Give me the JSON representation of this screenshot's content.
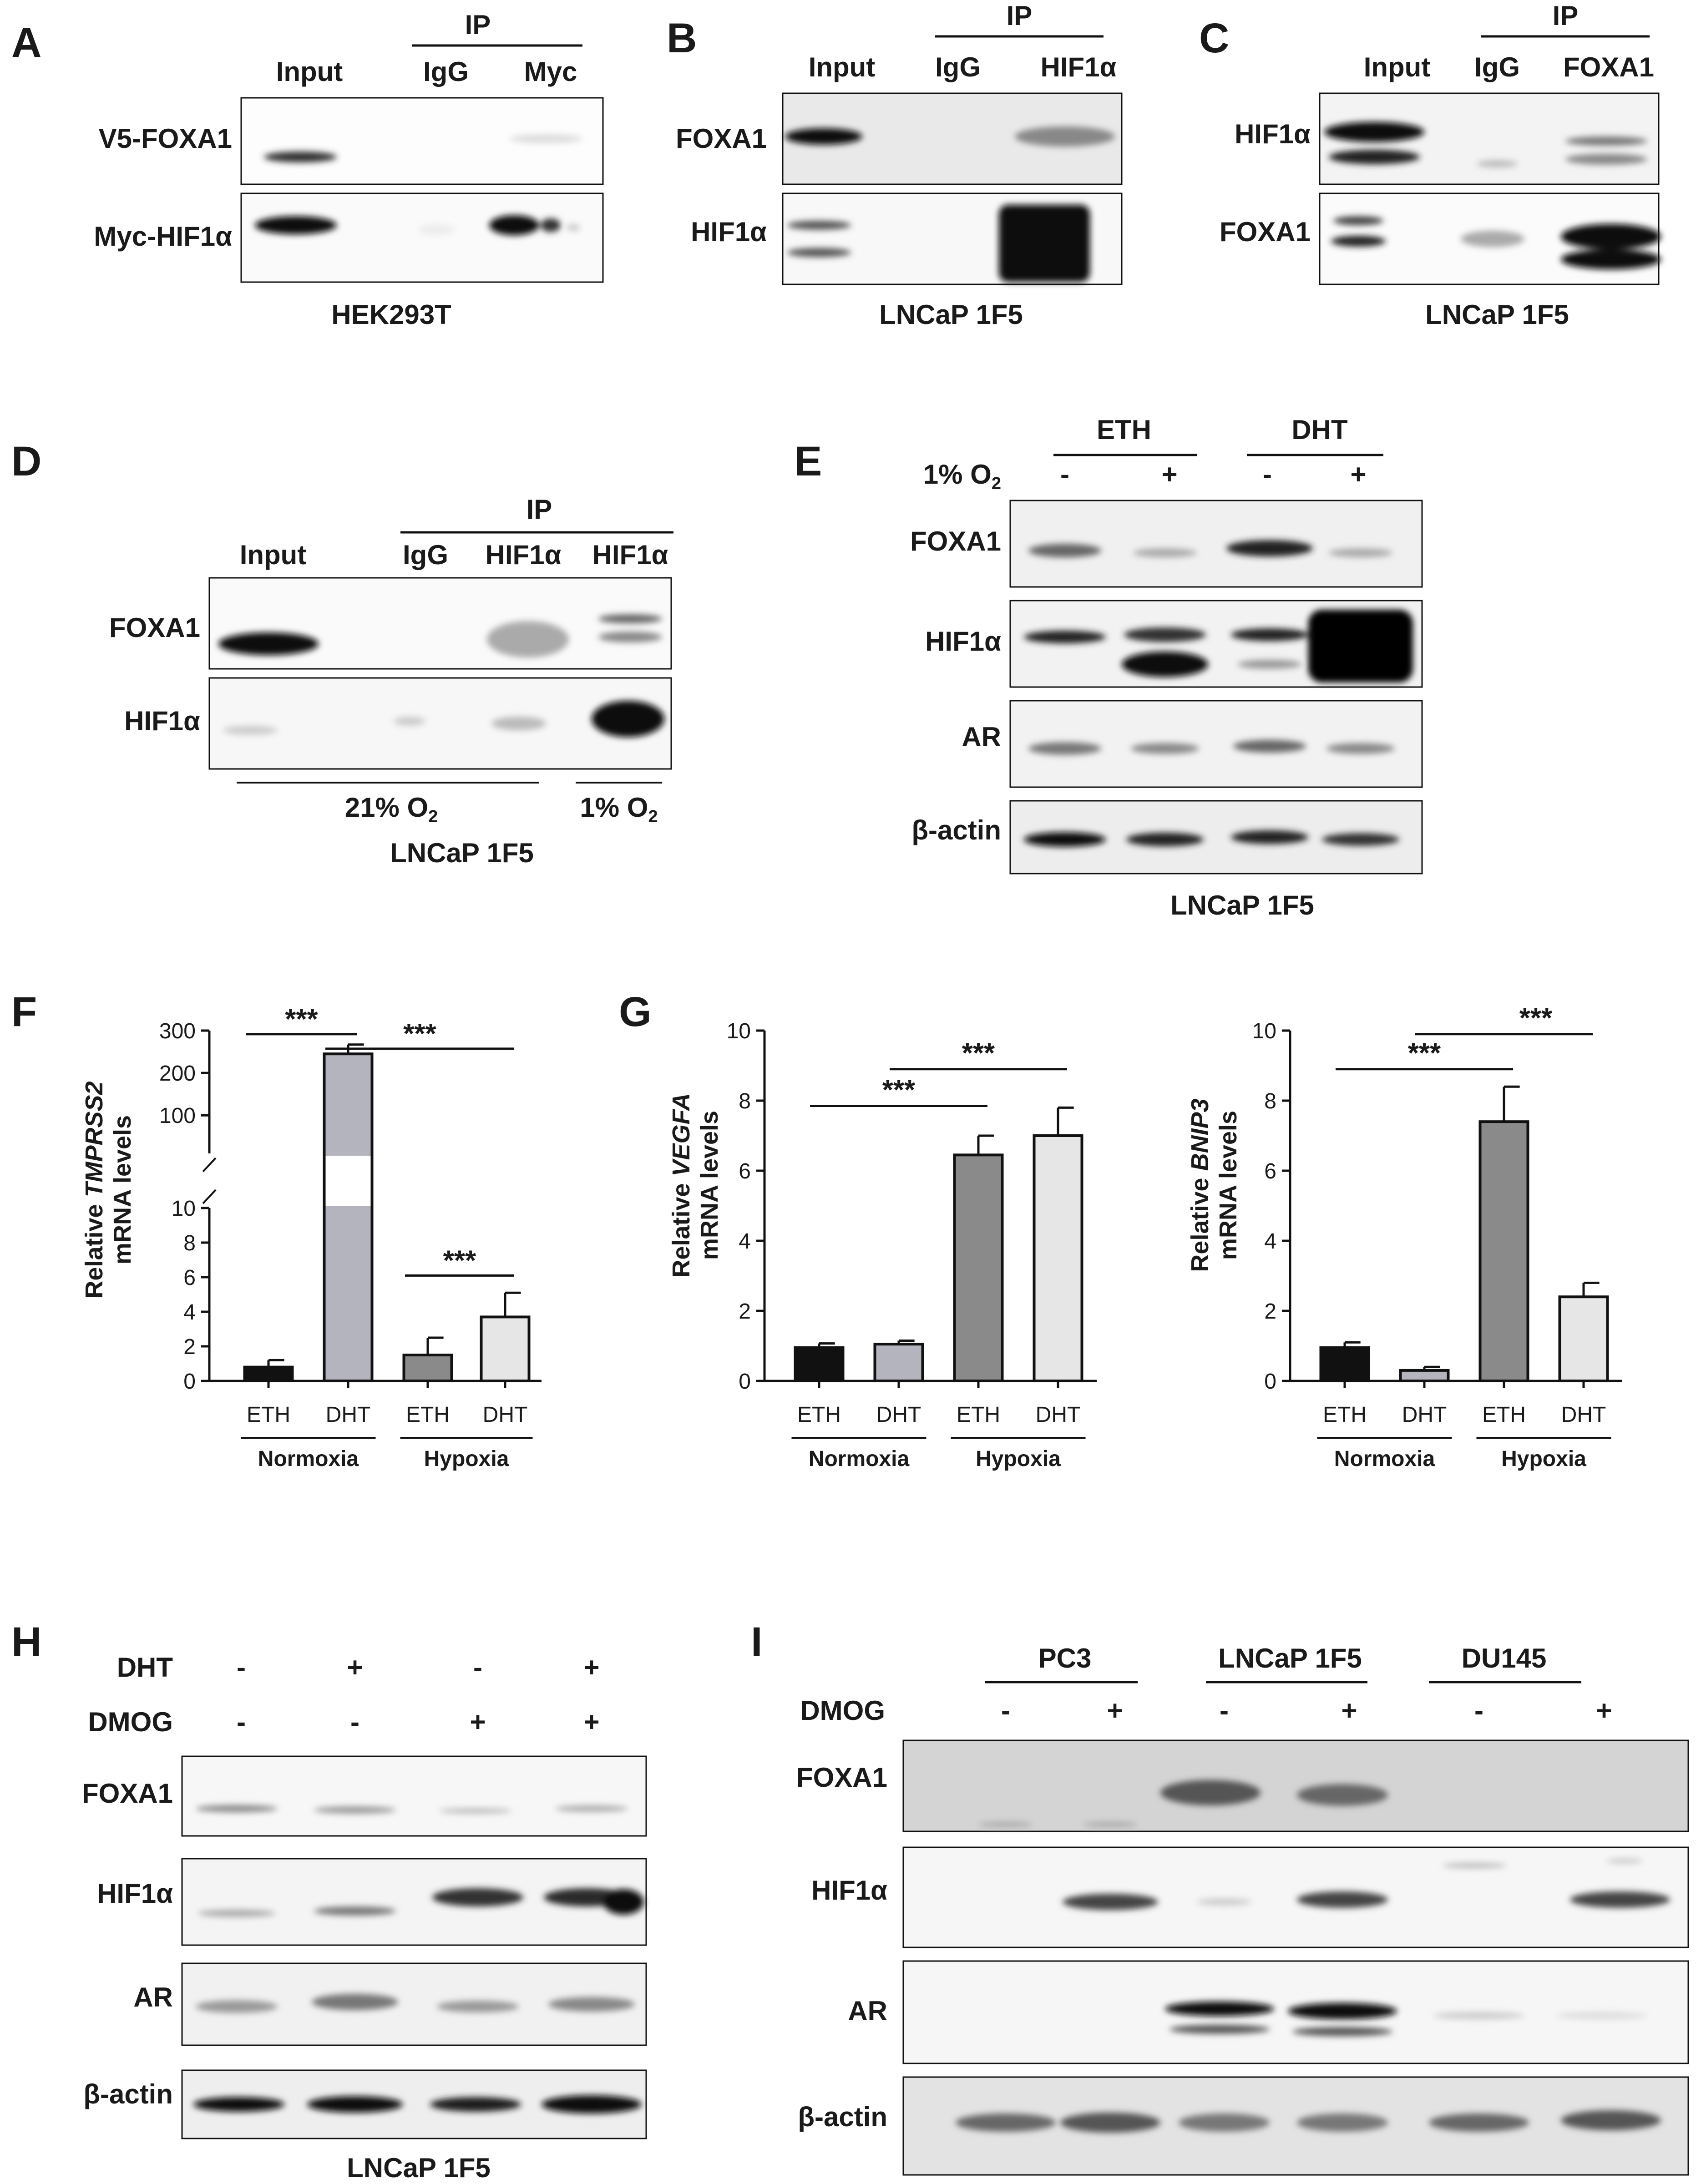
{
  "colors": {
    "eth_normoxia": "#111111",
    "dht_normoxia": "#b4b4be",
    "eth_hypoxia": "#8a8a8a",
    "dht_hypoxia": "#e6e6e6"
  },
  "panelA": {
    "letter": "A",
    "ip": "IP",
    "lanes": [
      "Input",
      "IgG",
      "Myc"
    ],
    "rows": [
      "V5-FOXA1",
      "Myc-HIF1α"
    ],
    "cell": "HEK293T"
  },
  "panelB": {
    "letter": "B",
    "ip": "IP",
    "lanes": [
      "Input",
      "IgG",
      "HIF1α"
    ],
    "rows": [
      "FOXA1",
      "HIF1α"
    ],
    "cell": "LNCaP 1F5"
  },
  "panelC": {
    "letter": "C",
    "ip": "IP",
    "lanes": [
      "Input",
      "IgG",
      "FOXA1"
    ],
    "rows": [
      "HIF1α",
      "FOXA1"
    ],
    "cell": "LNCaP 1F5"
  },
  "panelD": {
    "letter": "D",
    "ip": "IP",
    "lanes": [
      "Input",
      "IgG",
      "HIF1α",
      "HIF1α"
    ],
    "rows": [
      "FOXA1",
      "HIF1α"
    ],
    "cond_normoxia": "21% O",
    "cond_normoxia_sub": "2",
    "cond_hypoxia": "1% O",
    "cond_hypoxia_sub": "2",
    "cell": "LNCaP 1F5"
  },
  "panelE": {
    "letter": "E",
    "groups": [
      "ETH",
      "DHT"
    ],
    "cond": "1% O",
    "cond_sub": "2",
    "signs": [
      "-",
      "+",
      "-",
      "+"
    ],
    "rows": [
      "FOXA1",
      "HIF1α",
      "AR",
      "β-actin"
    ],
    "cell": "LNCaP 1F5"
  },
  "panelF": {
    "letter": "F",
    "ylabel_pre": "Relative ",
    "ylabel_gene": "TMPRSS2",
    "ylabel_line2": "mRNA levels"
  },
  "panelG": {
    "letter": "G",
    "chart1": {
      "ylabel_pre": "Relative ",
      "ylabel_gene": "VEGFA",
      "ylabel_line2": "mRNA levels"
    },
    "chart2": {
      "ylabel_pre": "Relative ",
      "ylabel_gene": "BNIP3",
      "ylabel_line2": "mRNA levels"
    }
  },
  "panelH": {
    "letter": "H",
    "treat1": "DHT",
    "treat2": "DMOG",
    "signs1": [
      "-",
      "+",
      "-",
      "+"
    ],
    "signs2": [
      "-",
      "-",
      "+",
      "+"
    ],
    "rows": [
      "FOXA1",
      "HIF1α",
      "AR",
      "β-actin"
    ],
    "cell": "LNCaP 1F5"
  },
  "panelI": {
    "letter": "I",
    "groups": [
      "PC3",
      "LNCaP 1F5",
      "DU145"
    ],
    "treat": "DMOG",
    "signs": [
      "-",
      "+",
      "-",
      "+",
      "-",
      "+"
    ],
    "rows": [
      "FOXA1",
      "HIF1α",
      "AR",
      "β-actin"
    ]
  },
  "chart_data": [
    {
      "type": "bar",
      "categories": [
        "ETH",
        "DHT",
        "ETH",
        "DHT"
      ],
      "groups": [
        "Normoxia",
        "Hypoxia"
      ],
      "values": [
        0.8,
        245,
        1.5,
        3.7
      ],
      "errors": [
        0.4,
        22,
        1.0,
        1.4
      ],
      "yaxis": "broken",
      "ylim_lower": [
        0,
        10
      ],
      "ylim_upper": [
        10,
        300
      ],
      "yticks": [
        0,
        2,
        4,
        6,
        8,
        10,
        100,
        200,
        300
      ],
      "ylabel": "Relative TMPRSS2 mRNA levels",
      "significance": [
        "***",
        "***",
        "***"
      ]
    },
    {
      "type": "bar",
      "categories": [
        "ETH",
        "DHT",
        "ETH",
        "DHT"
      ],
      "groups": [
        "Normoxia",
        "Hypoxia"
      ],
      "values": [
        0.95,
        1.05,
        6.45,
        7.0
      ],
      "errors": [
        0.12,
        0.1,
        0.55,
        0.8
      ],
      "ylim": [
        0,
        10
      ],
      "yticks": [
        0,
        2,
        4,
        6,
        8,
        10
      ],
      "ylabel": "Relative VEGFA mRNA levels",
      "significance": [
        "***",
        "***"
      ]
    },
    {
      "type": "bar",
      "categories": [
        "ETH",
        "DHT",
        "ETH",
        "DHT"
      ],
      "groups": [
        "Normoxia",
        "Hypoxia"
      ],
      "values": [
        0.95,
        0.3,
        7.4,
        2.4
      ],
      "errors": [
        0.15,
        0.1,
        1.0,
        0.4
      ],
      "ylim": [
        0,
        10
      ],
      "yticks": [
        0,
        2,
        4,
        6,
        8,
        10
      ],
      "ylabel": "Relative BNIP3 mRNA levels",
      "significance": [
        "***",
        "***"
      ]
    }
  ]
}
